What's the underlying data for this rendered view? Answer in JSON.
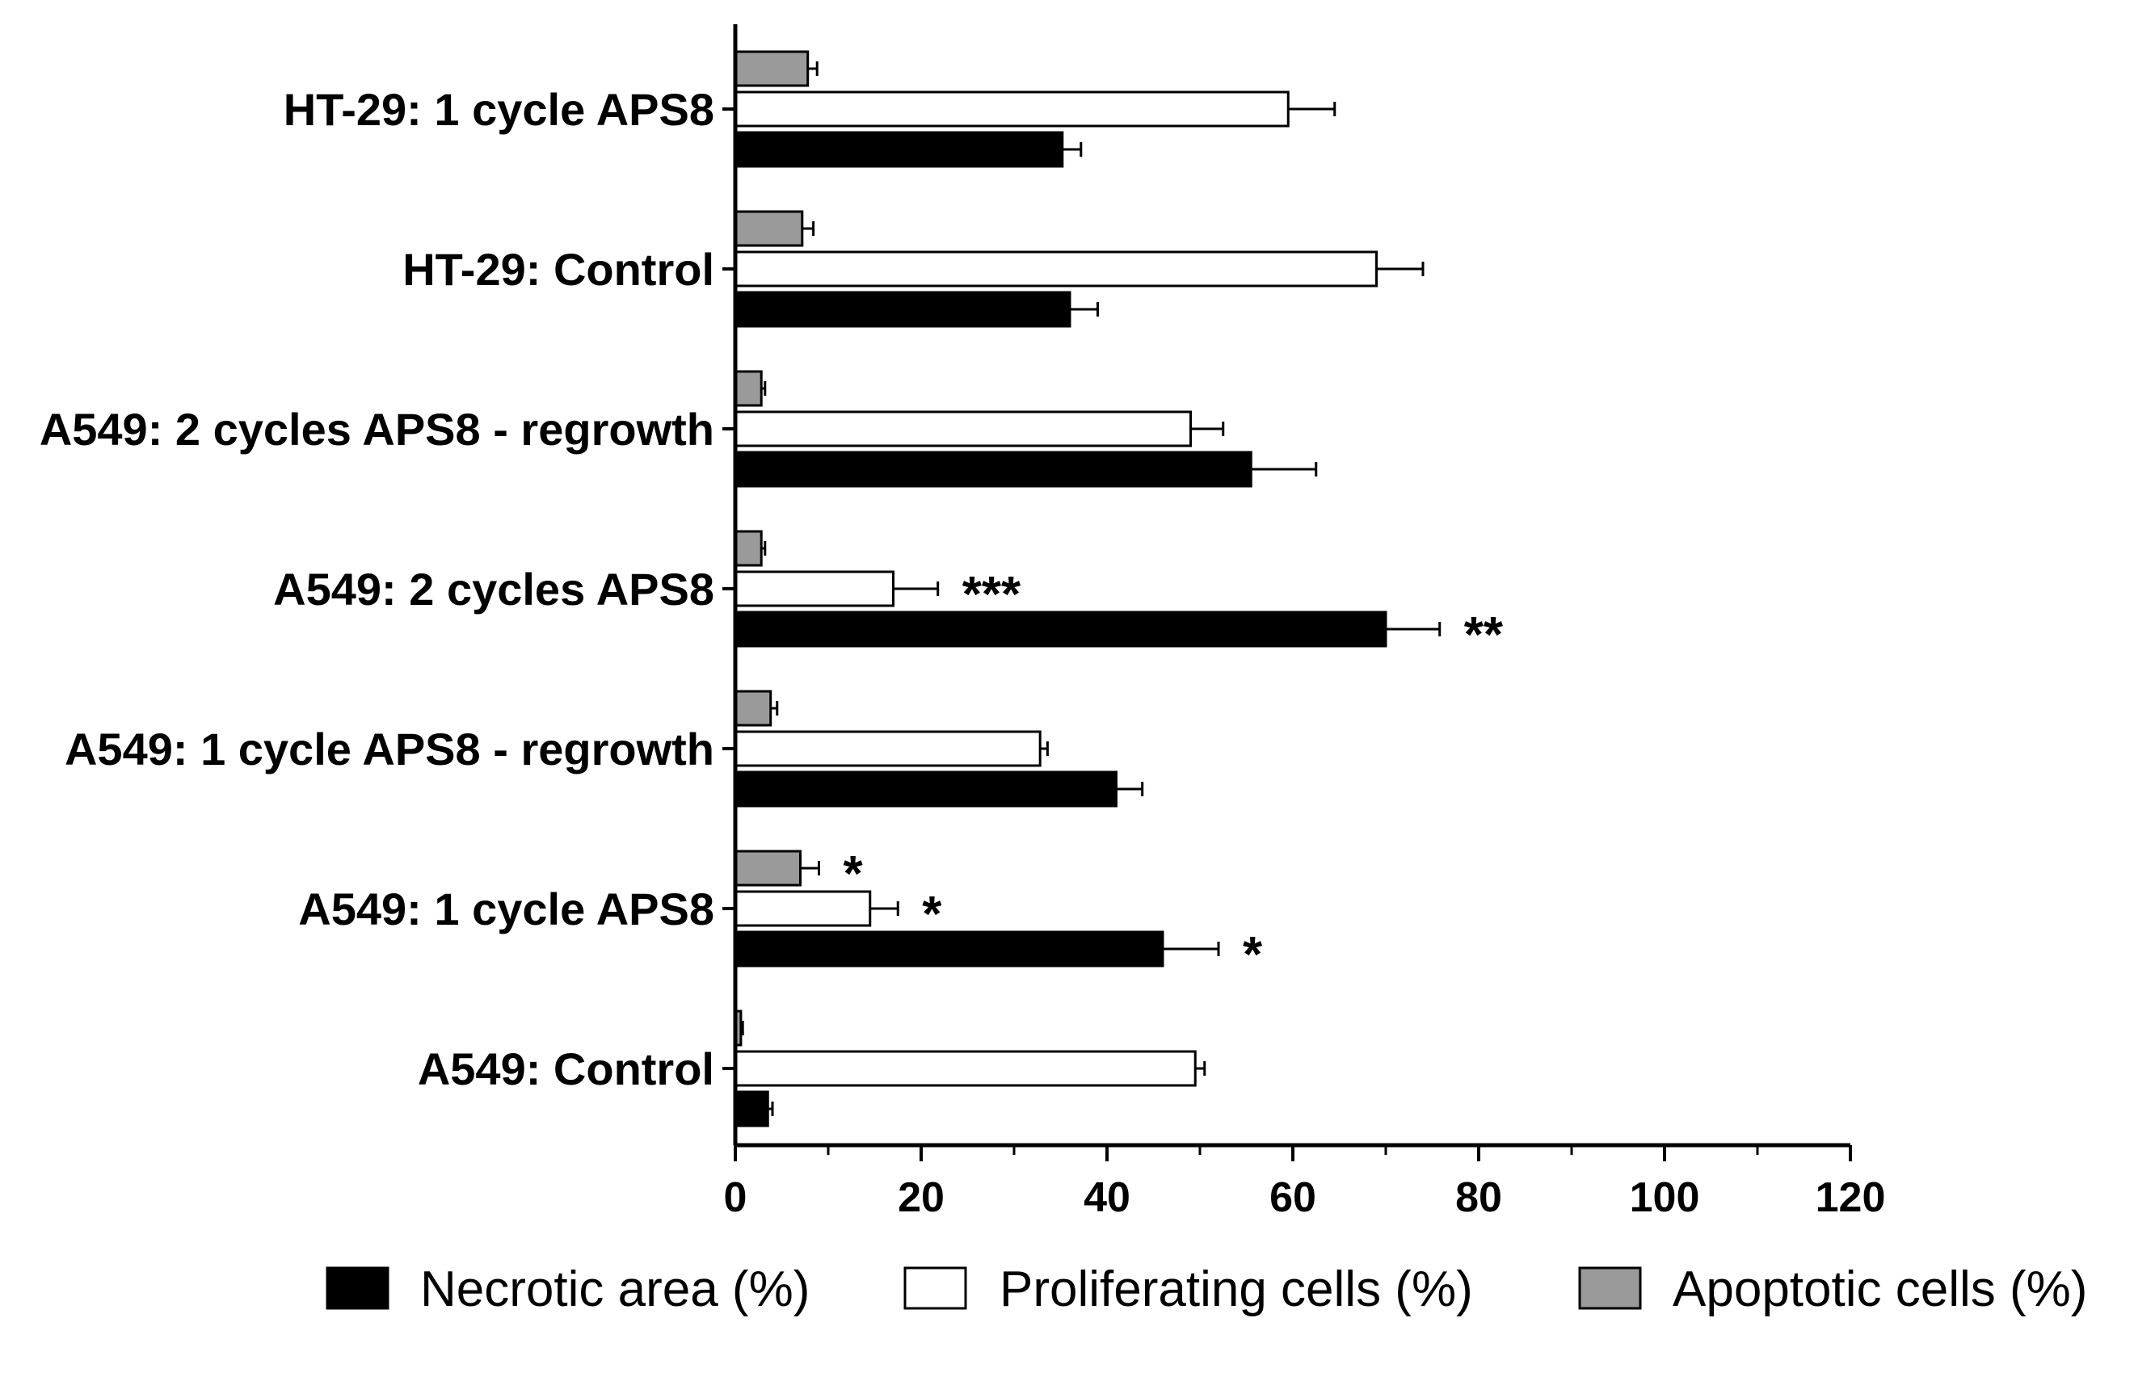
{
  "chart_data": {
    "type": "bar",
    "orientation": "horizontal",
    "title": "",
    "xlabel": "",
    "ylabel": "",
    "xlim": [
      0,
      120
    ],
    "x_ticks": [
      0,
      20,
      40,
      60,
      80,
      100,
      120
    ],
    "grid": false,
    "legend_position": "bottom",
    "categories": [
      "A549: Control",
      "A549: 1 cycle APS8",
      "A549: 1 cycle APS8 - regrowth",
      "A549: 2 cycles APS8",
      "A549: 2 cycles APS8 - regrowth",
      "HT-29: Control",
      "HT-29: 1 cycle APS8"
    ],
    "series": [
      {
        "name": "Necrotic area (%)",
        "color": "#000000",
        "values": [
          3.5,
          46,
          41,
          70,
          55.5,
          36,
          35.2
        ],
        "errors": [
          0.5,
          6,
          2.8,
          5.8,
          7,
          3,
          2
        ],
        "significance": [
          "",
          "*",
          "",
          "**",
          "",
          "",
          ""
        ]
      },
      {
        "name": "Proliferating cells (%)",
        "color": "#ffffff",
        "values": [
          49.5,
          14.5,
          32.8,
          17,
          49,
          69,
          59.5
        ],
        "errors": [
          1,
          3,
          0.8,
          4.8,
          3.5,
          5,
          5
        ],
        "significance": [
          "",
          "*",
          "",
          "***",
          "",
          "",
          ""
        ]
      },
      {
        "name": "Apoptotic cells (%)",
        "color": "#9a9a9a",
        "values": [
          0.6,
          7,
          3.8,
          2.8,
          2.8,
          7.2,
          7.8
        ],
        "errors": [
          0.2,
          2,
          0.7,
          0.4,
          0.4,
          1.2,
          1
        ],
        "significance": [
          "",
          "*",
          "",
          "",
          "",
          "",
          ""
        ]
      }
    ]
  }
}
